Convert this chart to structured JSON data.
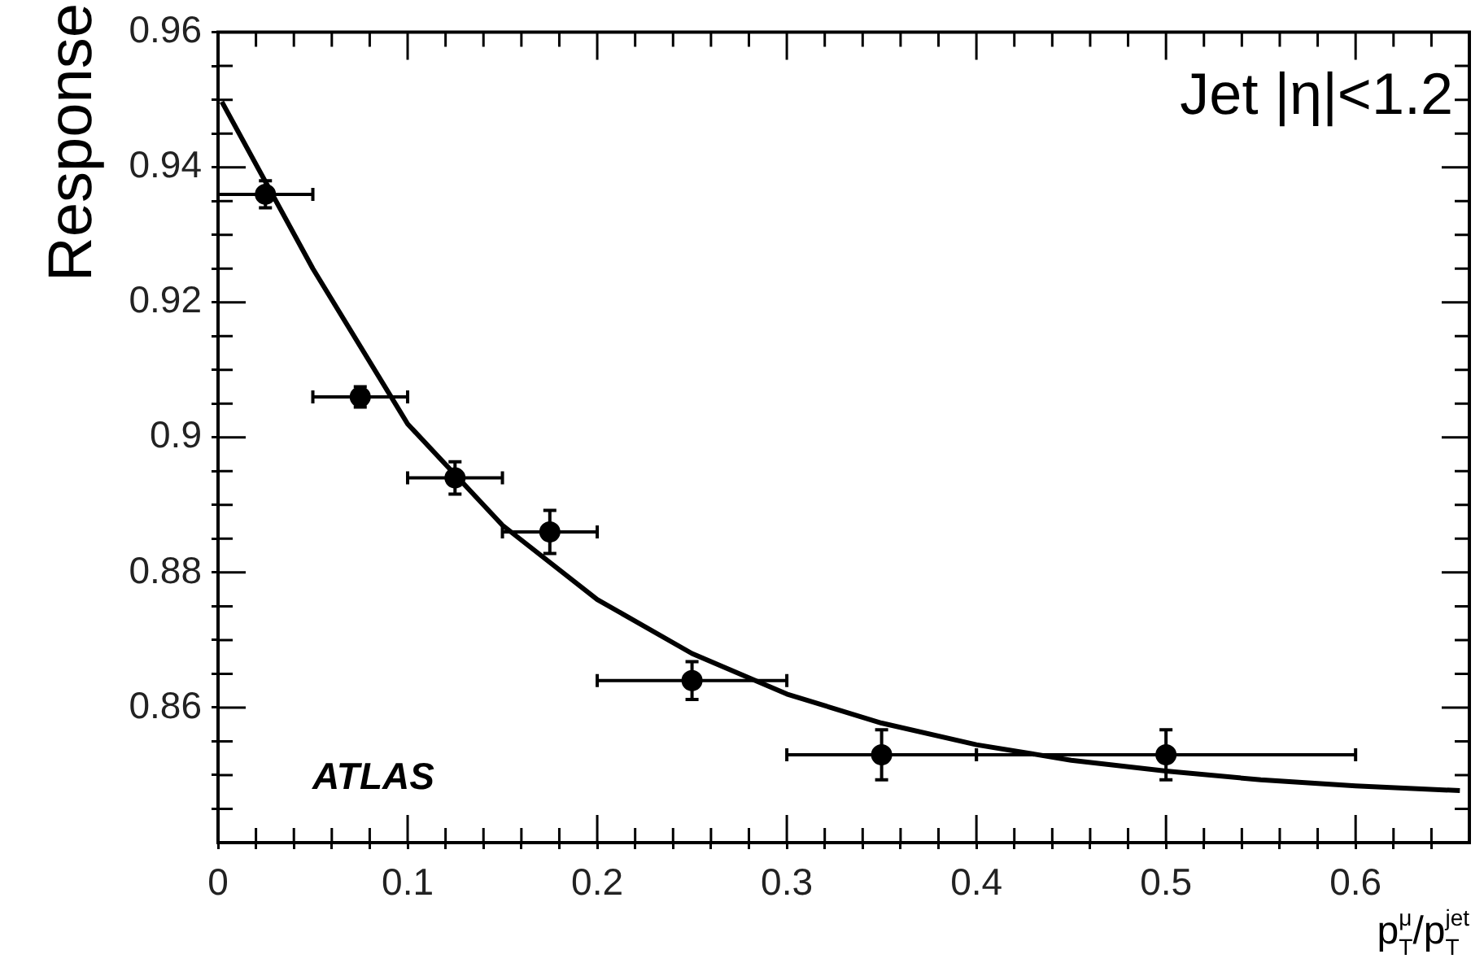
{
  "chart_data": {
    "type": "scatter",
    "xlabel": "p$_{T}$$^{μ}$/p$_{T}$$^{jet}$",
    "ylabel": "Response",
    "annotations": [
      "Jet |η|<1.2",
      "ATLAS"
    ],
    "xlim": [
      0,
      0.66
    ],
    "ylim": [
      0.84,
      0.96
    ],
    "xticks": [
      0,
      {
        "value": 0.02,
        "label": null
      },
      {
        "value": 0.04,
        "label": null
      },
      {
        "value": 0.06,
        "label": null
      },
      {
        "value": 0.08,
        "label": null
      },
      0.1,
      {
        "value": 0.12,
        "label": null
      },
      {
        "value": 0.14,
        "label": null
      },
      {
        "value": 0.16,
        "label": null
      },
      {
        "value": 0.18,
        "label": null
      },
      0.2,
      {
        "value": 0.22,
        "label": null
      },
      {
        "value": 0.24,
        "label": null
      },
      {
        "value": 0.26,
        "label": null
      },
      {
        "value": 0.28,
        "label": null
      },
      0.3,
      {
        "value": 0.32,
        "label": null
      },
      {
        "value": 0.34,
        "label": null
      },
      {
        "value": 0.36,
        "label": null
      },
      {
        "value": 0.38,
        "label": null
      },
      0.4,
      {
        "value": 0.42,
        "label": null
      },
      {
        "value": 0.44,
        "label": null
      },
      {
        "value": 0.46,
        "label": null
      },
      {
        "value": 0.48,
        "label": null
      },
      0.5,
      {
        "value": 0.52,
        "label": null
      },
      {
        "value": 0.54,
        "label": null
      },
      {
        "value": 0.56,
        "label": null
      },
      {
        "value": 0.58,
        "label": null
      },
      0.6,
      {
        "value": 0.62,
        "label": null
      },
      {
        "value": 0.64,
        "label": null
      }
    ],
    "yticks": [
      {
        "value": 0.845,
        "label": null
      },
      {
        "value": 0.85,
        "label": null
      },
      {
        "value": 0.855,
        "label": null
      },
      0.86,
      {
        "value": 0.865,
        "label": null
      },
      {
        "value": 0.87,
        "label": null
      },
      {
        "value": 0.875,
        "label": null
      },
      0.88,
      {
        "value": 0.885,
        "label": null
      },
      {
        "value": 0.89,
        "label": null
      },
      {
        "value": 0.895,
        "label": null
      },
      0.9,
      {
        "value": 0.905,
        "label": null
      },
      {
        "value": 0.91,
        "label": null
      },
      {
        "value": 0.915,
        "label": null
      },
      0.92,
      {
        "value": 0.925,
        "label": null
      },
      {
        "value": 0.93,
        "label": null
      },
      {
        "value": 0.935,
        "label": null
      },
      0.94,
      {
        "value": 0.945,
        "label": null
      },
      {
        "value": 0.95,
        "label": null
      },
      {
        "value": 0.955,
        "label": null
      },
      0.96
    ],
    "marker": "circle",
    "legend": false,
    "grid": false,
    "series": [
      {
        "color": "#000000",
        "x": [
          0.025,
          0.075,
          0.125,
          0.175,
          0.25,
          0.35,
          0.5
        ],
        "values": [
          0.936,
          0.906,
          0.894,
          0.886,
          0.864,
          0.853,
          0.853
        ],
        "errors": [
          0.002,
          0.0015,
          0.0024,
          0.0032,
          0.0028,
          0.0037,
          0.0037
        ],
        "xerrors": [
          0.025,
          0.025,
          0.025,
          0.025,
          0.05,
          0.05,
          0.1
        ]
      },
      {
        "type": "line",
        "color": "#000000",
        "marker": "none",
        "x": [
          0.002,
          0.05,
          0.1,
          0.15,
          0.2,
          0.25,
          0.3,
          0.35,
          0.4,
          0.45,
          0.5,
          0.55,
          0.6,
          0.655
        ],
        "values": [
          0.9497,
          0.925,
          0.902,
          0.887,
          0.876,
          0.868,
          0.862,
          0.8577,
          0.8545,
          0.8522,
          0.8506,
          0.8493,
          0.8484,
          0.8477
        ]
      }
    ]
  }
}
